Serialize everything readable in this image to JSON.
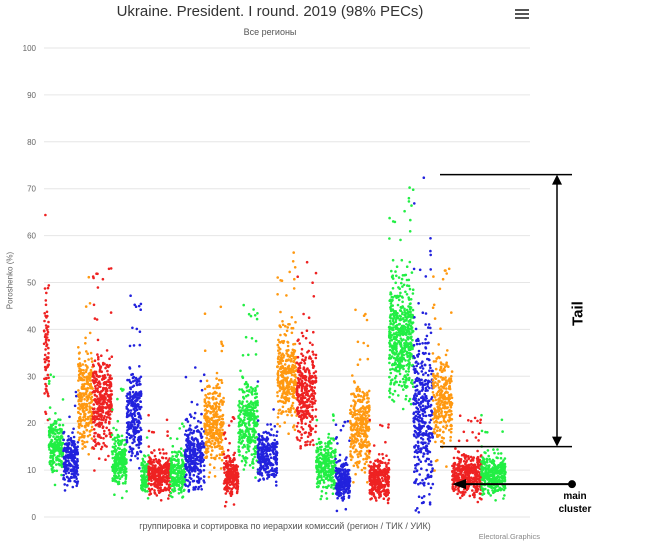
{
  "chart_data": {
    "type": "scatter",
    "title": "Ukraine. President. I round. 2019 (98% PECs)",
    "subtitle": "Все регионы",
    "xlabel": "группировка и сортировка по иерархии комиссий (регион / ТИК / УИК)",
    "ylabel": "Poroshenko (%)",
    "ylim": [
      0,
      100
    ],
    "yticks": [
      0,
      10,
      20,
      30,
      40,
      50,
      60,
      70,
      80,
      90,
      100
    ],
    "grid": true,
    "credit": "Electoral.Graphics",
    "series_colors": [
      "#22ee44",
      "#2222dd",
      "#ff9911",
      "#ee2222"
    ],
    "clusters": [
      {
        "color": "#ee2222",
        "x_start": 0.0,
        "x_end": 0.01,
        "center": 35,
        "spread": 14,
        "points": 70
      },
      {
        "color": "#22ee44",
        "x_start": 0.01,
        "x_end": 0.04,
        "center": 15,
        "spread": 5,
        "points": 220
      },
      {
        "color": "#2222dd",
        "x_start": 0.04,
        "x_end": 0.07,
        "center": 12,
        "spread": 5,
        "points": 220
      },
      {
        "color": "#ff9911",
        "x_start": 0.07,
        "x_end": 0.1,
        "center": 25,
        "spread": 9,
        "points": 260
      },
      {
        "color": "#ee2222",
        "x_start": 0.1,
        "x_end": 0.14,
        "center": 25,
        "spread": 9,
        "points": 330
      },
      {
        "color": "#22ee44",
        "x_start": 0.14,
        "x_end": 0.17,
        "center": 12,
        "spread": 5,
        "points": 220
      },
      {
        "color": "#2222dd",
        "x_start": 0.17,
        "x_end": 0.2,
        "center": 22,
        "spread": 8,
        "points": 260
      },
      {
        "color": "#22ee44",
        "x_start": 0.2,
        "x_end": 0.215,
        "center": 9,
        "spread": 4,
        "points": 100
      },
      {
        "color": "#ee2222",
        "x_start": 0.215,
        "x_end": 0.26,
        "center": 9,
        "spread": 4,
        "points": 300
      },
      {
        "color": "#22ee44",
        "x_start": 0.26,
        "x_end": 0.29,
        "center": 9,
        "spread": 4,
        "points": 200
      },
      {
        "color": "#2222dd",
        "x_start": 0.29,
        "x_end": 0.33,
        "center": 13,
        "spread": 6,
        "points": 300
      },
      {
        "color": "#ff9911",
        "x_start": 0.33,
        "x_end": 0.37,
        "center": 20,
        "spread": 8,
        "points": 300
      },
      {
        "color": "#ee2222",
        "x_start": 0.37,
        "x_end": 0.4,
        "center": 9,
        "spread": 4,
        "points": 220
      },
      {
        "color": "#22ee44",
        "x_start": 0.4,
        "x_end": 0.44,
        "center": 20,
        "spread": 8,
        "points": 300
      },
      {
        "color": "#2222dd",
        "x_start": 0.44,
        "x_end": 0.48,
        "center": 13,
        "spread": 5,
        "points": 260
      },
      {
        "color": "#ff9911",
        "x_start": 0.48,
        "x_end": 0.52,
        "center": 30,
        "spread": 9,
        "points": 320
      },
      {
        "color": "#ee2222",
        "x_start": 0.52,
        "x_end": 0.56,
        "center": 26,
        "spread": 9,
        "points": 320
      },
      {
        "color": "#22ee44",
        "x_start": 0.56,
        "x_end": 0.6,
        "center": 11,
        "spread": 5,
        "points": 260
      },
      {
        "color": "#2222dd",
        "x_start": 0.6,
        "x_end": 0.63,
        "center": 8,
        "spread": 4,
        "points": 220
      },
      {
        "color": "#ff9911",
        "x_start": 0.63,
        "x_end": 0.67,
        "center": 19,
        "spread": 8,
        "points": 300
      },
      {
        "color": "#ee2222",
        "x_start": 0.67,
        "x_end": 0.71,
        "center": 8,
        "spread": 4,
        "points": 300
      },
      {
        "color": "#22ee44",
        "x_start": 0.71,
        "x_end": 0.76,
        "center": 38,
        "spread": 11,
        "points": 520
      },
      {
        "color": "#2222dd",
        "x_start": 0.76,
        "x_end": 0.8,
        "center": 22,
        "spread": 16,
        "points": 380
      },
      {
        "color": "#ff9911",
        "x_start": 0.8,
        "x_end": 0.84,
        "center": 25,
        "spread": 9,
        "points": 280
      },
      {
        "color": "#ee2222",
        "x_start": 0.84,
        "x_end": 0.9,
        "center": 9,
        "spread": 4,
        "points": 380
      },
      {
        "color": "#22ee44",
        "x_start": 0.9,
        "x_end": 0.95,
        "center": 9,
        "spread": 4,
        "points": 320
      }
    ],
    "annotations": {
      "tail_label": "Tail",
      "tail_range": [
        15,
        73
      ],
      "main_cluster_label_1": "main",
      "main_cluster_label_2": "cluster",
      "main_cluster_value": 7
    }
  }
}
